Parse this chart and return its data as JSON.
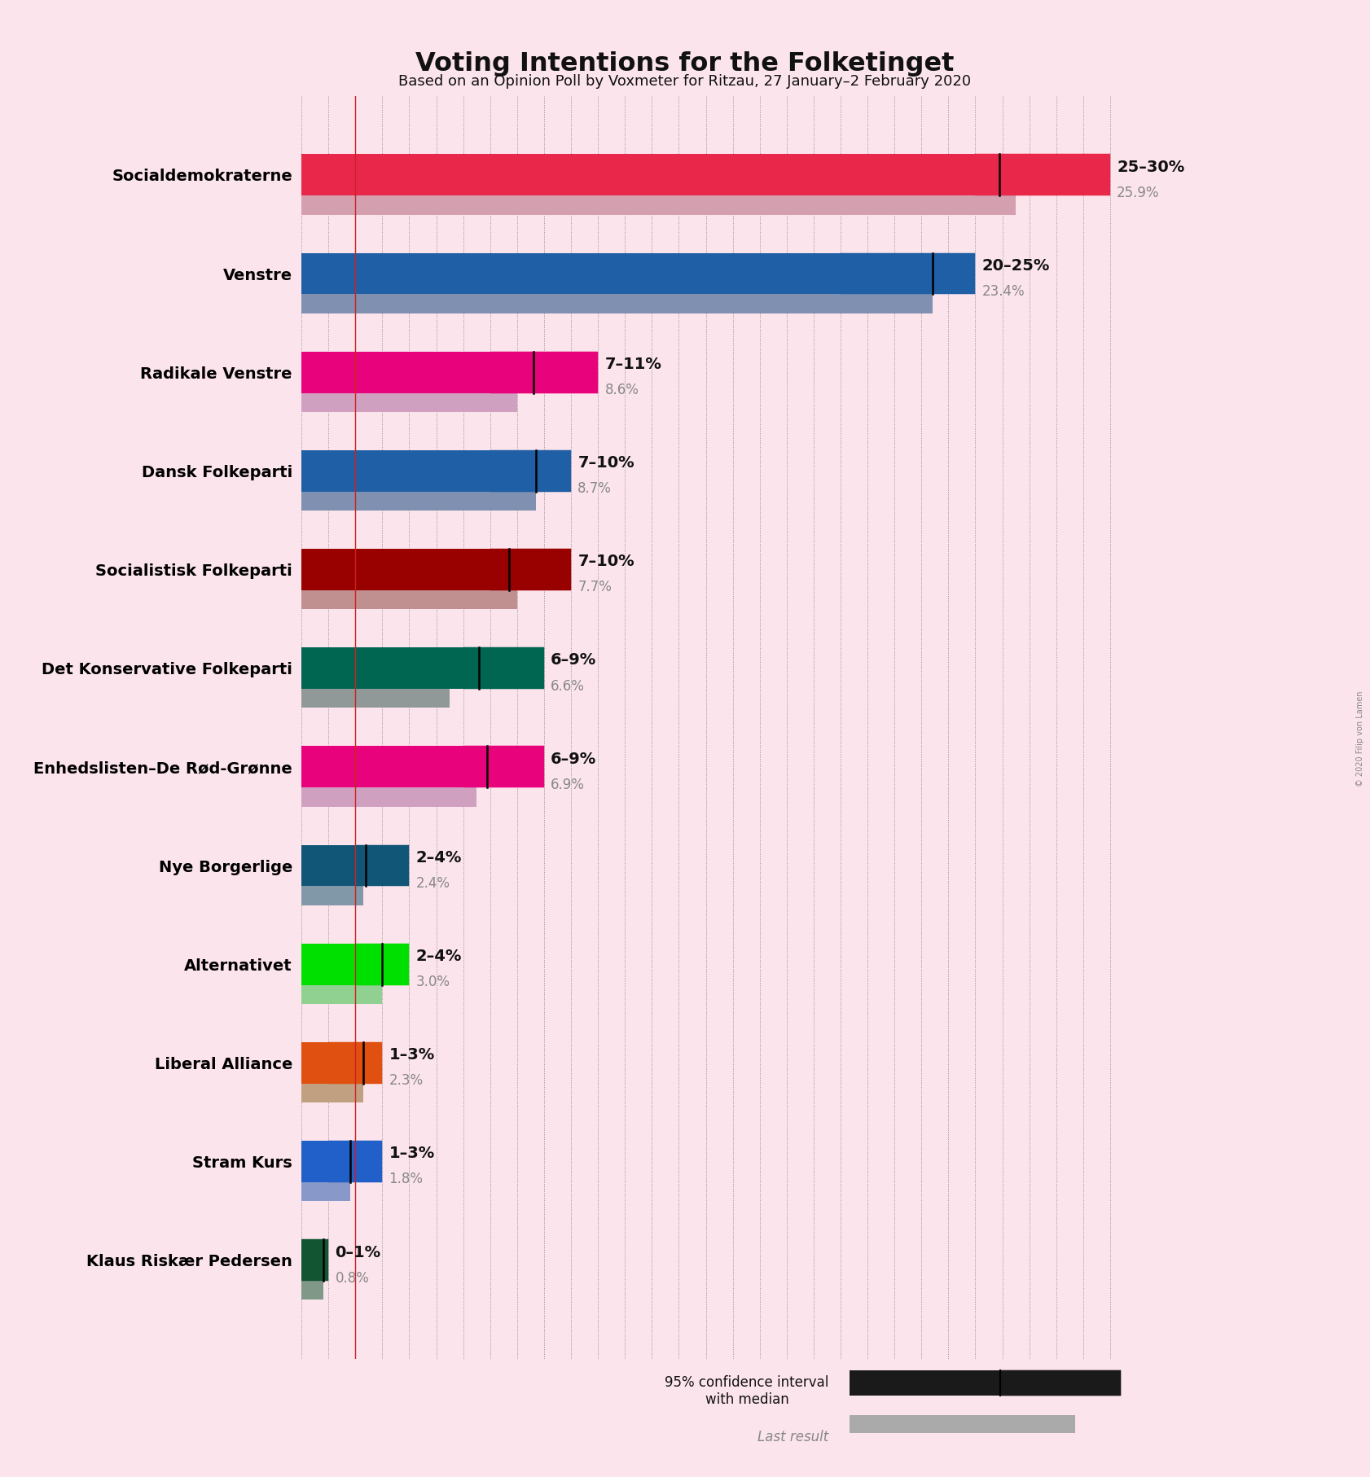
{
  "title": "Voting Intentions for the Folketinget",
  "subtitle": "Based on an Opinion Poll by Voxmeter for Ritzau, 27 January–2 February 2020",
  "copyright": "© 2020 Filip von Lamen",
  "background_color": "#fce4ec",
  "parties": [
    {
      "name": "Socialdemokraterne",
      "low": 25,
      "high": 30,
      "median": 25.9,
      "last": 26.5,
      "color": "#e8274b",
      "last_color": "#d4a0b0",
      "range_label": "25–30%",
      "median_label": "25.9%"
    },
    {
      "name": "Venstre",
      "low": 20,
      "high": 25,
      "median": 23.4,
      "last": 23.4,
      "color": "#1f5fa6",
      "last_color": "#8090b0",
      "range_label": "20–25%",
      "median_label": "23.4%"
    },
    {
      "name": "Radikale Venstre",
      "low": 7,
      "high": 11,
      "median": 8.6,
      "last": 8.0,
      "color": "#e8027c",
      "last_color": "#d0a0c0",
      "range_label": "7–11%",
      "median_label": "8.6%"
    },
    {
      "name": "Dansk Folkeparti",
      "low": 7,
      "high": 10,
      "median": 8.7,
      "last": 8.7,
      "color": "#1f5fa6",
      "last_color": "#8090b0",
      "range_label": "7–10%",
      "median_label": "8.7%"
    },
    {
      "name": "Socialistisk Folkeparti",
      "low": 7,
      "high": 10,
      "median": 7.7,
      "last": 8.0,
      "color": "#990000",
      "last_color": "#c09090",
      "range_label": "7–10%",
      "median_label": "7.7%"
    },
    {
      "name": "Det Konservative Folkeparti",
      "low": 6,
      "high": 9,
      "median": 6.6,
      "last": 5.5,
      "color": "#006652",
      "last_color": "#909898",
      "range_label": "6–9%",
      "median_label": "6.6%"
    },
    {
      "name": "Enhedslisten–De Rød-Grønne",
      "low": 6,
      "high": 9,
      "median": 6.9,
      "last": 6.5,
      "color": "#e8027c",
      "last_color": "#d0a0c0",
      "range_label": "6–9%",
      "median_label": "6.9%"
    },
    {
      "name": "Nye Borgerlige",
      "low": 2,
      "high": 4,
      "median": 2.4,
      "last": 2.3,
      "color": "#115577",
      "last_color": "#8098a8",
      "range_label": "2–4%",
      "median_label": "2.4%"
    },
    {
      "name": "Alternativet",
      "low": 2,
      "high": 4,
      "median": 3.0,
      "last": 3.0,
      "color": "#00e000",
      "last_color": "#90d090",
      "range_label": "2–4%",
      "median_label": "3.0%"
    },
    {
      "name": "Liberal Alliance",
      "low": 1,
      "high": 3,
      "median": 2.3,
      "last": 2.3,
      "color": "#e05010",
      "last_color": "#c0a080",
      "range_label": "1–3%",
      "median_label": "2.3%"
    },
    {
      "name": "Stram Kurs",
      "low": 1,
      "high": 3,
      "median": 1.8,
      "last": 1.8,
      "color": "#2060c8",
      "last_color": "#8898c8",
      "range_label": "1–3%",
      "median_label": "1.8%"
    },
    {
      "name": "Klaus Riskær Pedersen",
      "low": 0,
      "high": 1,
      "median": 0.8,
      "last": 0.8,
      "color": "#115533",
      "last_color": "#809888",
      "range_label": "0–1%",
      "median_label": "0.8%"
    }
  ],
  "legend_label1": "95% confidence interval\nwith median",
  "legend_label2": "Last result",
  "xlim": [
    0,
    31
  ],
  "xline": 2.0,
  "bar_height": 0.42,
  "last_bar_height": 0.2
}
